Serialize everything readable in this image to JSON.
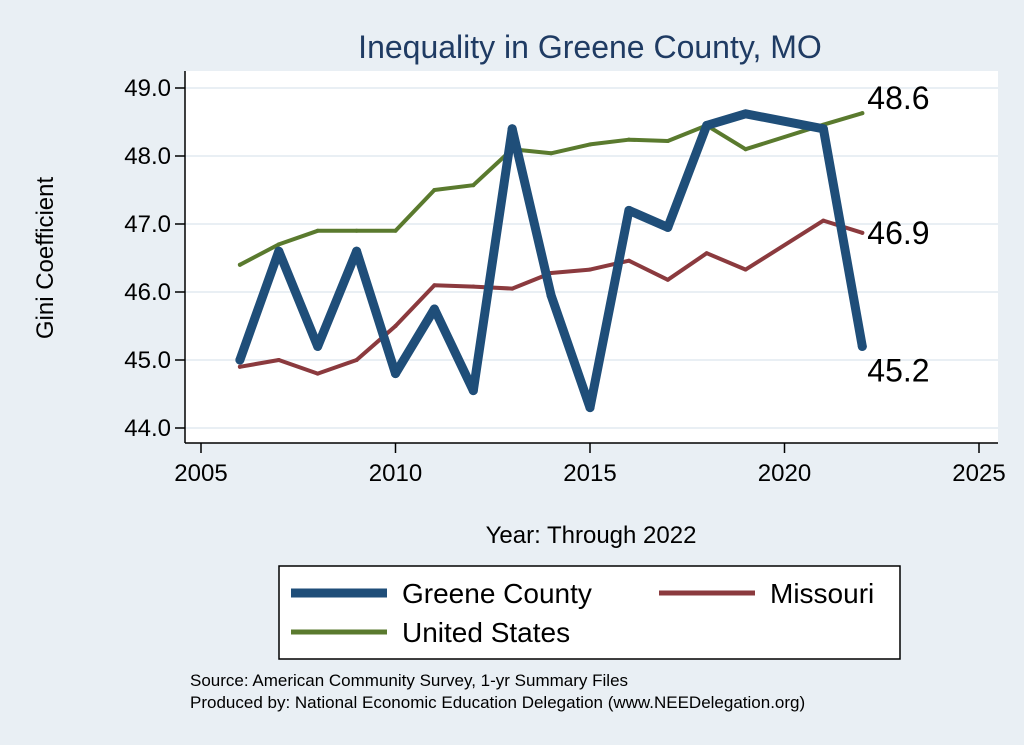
{
  "chart_data": {
    "type": "line",
    "title": "Inequality in Greene County, MO",
    "xlabel": "Year: Through 2022",
    "ylabel": "Gini Coefficient",
    "xlim": [
      2005,
      2025
    ],
    "ylim": [
      44.0,
      49.0
    ],
    "x_ticks": [
      2005,
      2010,
      2015,
      2020,
      2025
    ],
    "y_ticks": [
      44.0,
      45.0,
      46.0,
      47.0,
      48.0,
      49.0
    ],
    "grid": true,
    "legend_position": "bottom",
    "series": [
      {
        "name": "Greene County",
        "color": "#1f4e79",
        "x": [
          2006,
          2007,
          2008,
          2009,
          2010,
          2011,
          2012,
          2013,
          2014,
          2015,
          2016,
          2017,
          2018,
          2019,
          2021,
          2022
        ],
        "values": [
          45.0,
          46.6,
          45.2,
          46.6,
          44.8,
          45.75,
          44.55,
          48.4,
          45.95,
          44.3,
          47.2,
          46.95,
          48.45,
          48.62,
          48.4,
          45.2
        ],
        "end_label": "45.2"
      },
      {
        "name": "Missouri",
        "color": "#8b3a3e",
        "x": [
          2006,
          2007,
          2008,
          2009,
          2010,
          2011,
          2012,
          2013,
          2014,
          2015,
          2016,
          2017,
          2018,
          2019,
          2021,
          2022
        ],
        "values": [
          44.9,
          45.0,
          44.8,
          45.0,
          45.5,
          46.1,
          46.08,
          46.05,
          46.28,
          46.33,
          46.46,
          46.18,
          46.57,
          46.33,
          47.05,
          46.87
        ],
        "end_label": "46.9"
      },
      {
        "name": "United States",
        "color": "#5a7a2e",
        "x": [
          2006,
          2007,
          2008,
          2009,
          2010,
          2011,
          2012,
          2013,
          2014,
          2015,
          2016,
          2017,
          2018,
          2019,
          2021,
          2022
        ],
        "values": [
          46.4,
          46.7,
          46.9,
          46.9,
          46.9,
          47.5,
          47.57,
          48.1,
          48.04,
          48.17,
          48.24,
          48.22,
          48.45,
          48.1,
          48.46,
          48.63
        ],
        "end_label": "48.6"
      }
    ],
    "notes": [
      "Source: American Community Survey, 1-yr Summary Files",
      "Produced by: National Economic Education Delegation (www.NEEDelegation.org)"
    ]
  }
}
